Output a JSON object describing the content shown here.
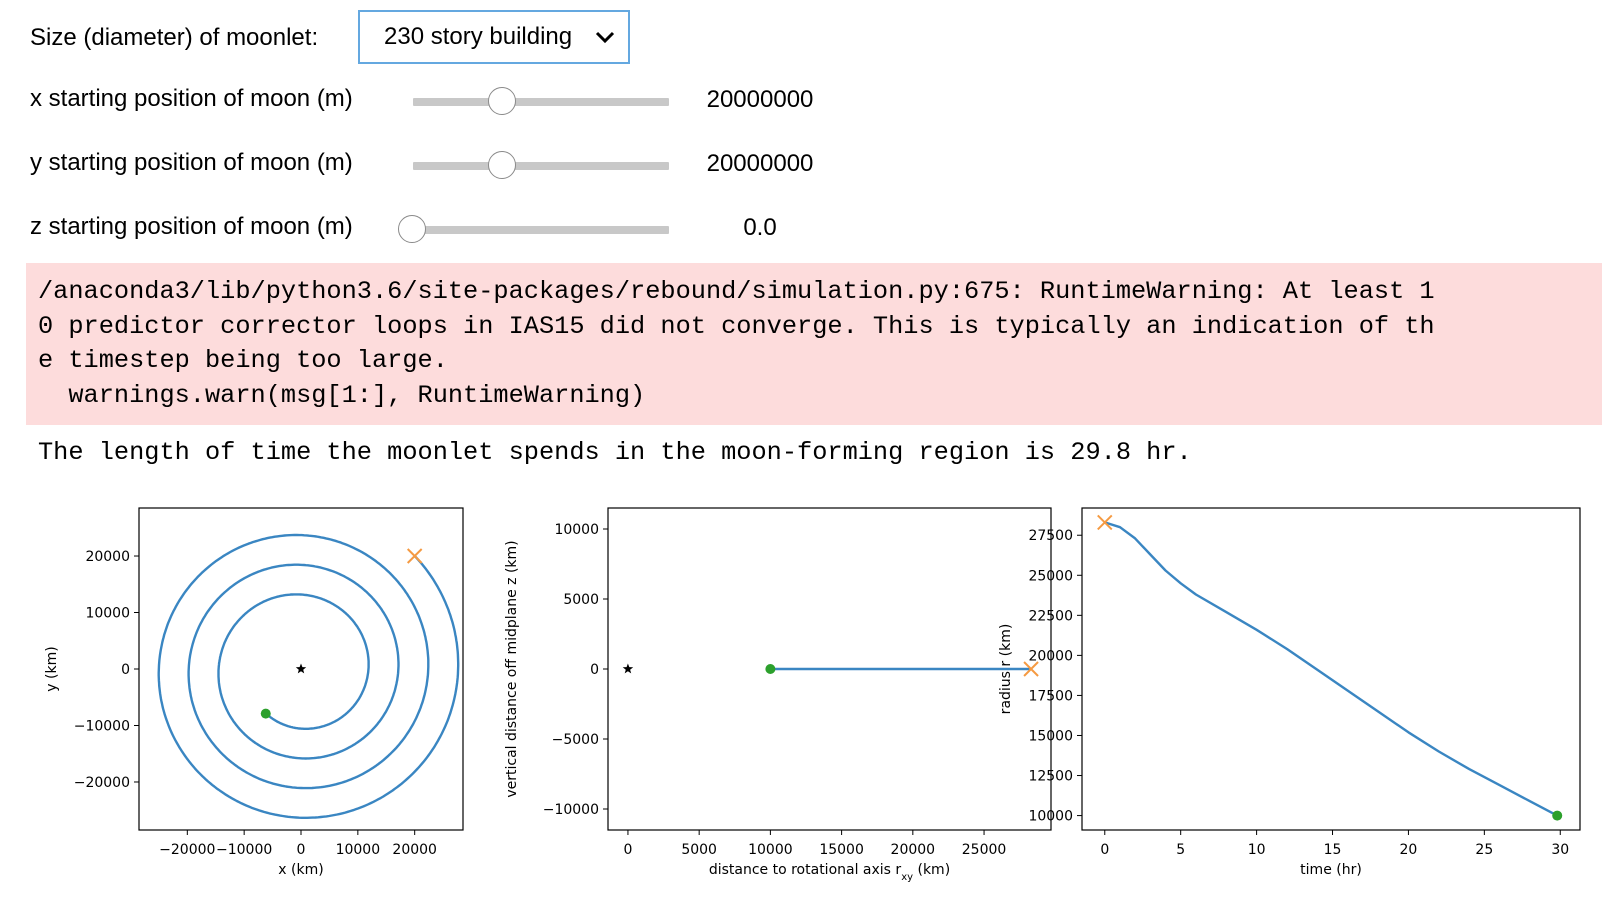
{
  "controls": {
    "size": {
      "label": "Size (diameter) of moonlet:",
      "selected": "230 story building"
    },
    "x_slider": {
      "label": "x starting position of moon (m)",
      "value": "20000000",
      "fraction": 0.35
    },
    "y_slider": {
      "label": "y starting position of moon (m)",
      "value": "20000000",
      "fraction": 0.35
    },
    "z_slider": {
      "label": "z starting position of moon (m)",
      "value": "0.0",
      "fraction": 0.0
    }
  },
  "output": {
    "warning_lines": [
      "/anaconda3/lib/python3.6/site-packages/rebound/simulation.py:675: RuntimeWarning: At least 1",
      "0 predictor corrector loops in IAS15 did not converge. This is typically an indication of th",
      "e timestep being too large.",
      "  warnings.warn(msg[1:], RuntimeWarning)"
    ],
    "result_text": "The length of time the moonlet spends in the moon-forming region is 29.8 hr."
  },
  "colors": {
    "orbit": "#3a86c2",
    "start_marker": "#f59a42",
    "end_marker": "#2ca02c",
    "center_marker": "#000000",
    "warning_bg": "#fddcdc",
    "dropdown_border": "#64a8e0"
  },
  "chart_data": [
    {
      "type": "line",
      "xlabel": "x (km)",
      "ylabel": "y (km)",
      "xlim": [
        -28500,
        28500
      ],
      "ylim": [
        -28500,
        28500
      ],
      "xticks": [
        -20000,
        -10000,
        0,
        10000,
        20000
      ],
      "xtick_labels": [
        "−20000",
        "−10000",
        "0",
        "10000",
        "20000"
      ],
      "yticks": [
        20000,
        10000,
        0,
        -10000,
        -20000
      ],
      "ytick_labels": [
        "20000",
        "10000",
        "0",
        "−10000",
        "−20000"
      ],
      "series": [
        {
          "kind": "spiral",
          "start_radius_km": 28300,
          "end_radius_km": 10000,
          "start_angle_deg": 45,
          "end_angle_deg": 232,
          "turns": 4
        }
      ],
      "markers": [
        {
          "shape": "x",
          "x": 20000,
          "y": 20000,
          "color": "#f59a42"
        },
        {
          "shape": "dot",
          "x": -6200,
          "y": -7900,
          "color": "#2ca02c"
        },
        {
          "shape": "star",
          "x": 0,
          "y": 0,
          "color": "#000000"
        }
      ]
    },
    {
      "type": "line",
      "xlabel": "distance to rotational axis r",
      "xlabel_sub": "xy",
      "xlabel_unit": "(km)",
      "ylabel": "vertical distance off midplane z (km)",
      "xlim": [
        -1400,
        29700
      ],
      "ylim": [
        -11500,
        11500
      ],
      "xticks": [
        0,
        5000,
        10000,
        15000,
        20000,
        25000
      ],
      "xtick_labels": [
        "0",
        "5000",
        "10000",
        "15000",
        "20000",
        "25000"
      ],
      "yticks": [
        10000,
        5000,
        0,
        -5000,
        -10000
      ],
      "ytick_labels": [
        "10000",
        "5000",
        "0",
        "−5000",
        "−10000"
      ],
      "series": [
        {
          "x": [
            10000,
            28300
          ],
          "y": [
            0,
            0
          ]
        }
      ],
      "markers": [
        {
          "shape": "x",
          "x": 28300,
          "y": 0,
          "color": "#f59a42"
        },
        {
          "shape": "dot",
          "x": 10000,
          "y": 0,
          "color": "#2ca02c"
        },
        {
          "shape": "star",
          "x": 0,
          "y": 0,
          "color": "#000000"
        }
      ]
    },
    {
      "type": "line",
      "xlabel": "time (hr)",
      "ylabel": "radius r (km)",
      "xlim": [
        -1.5,
        31.3
      ],
      "ylim": [
        9100,
        29200
      ],
      "xticks": [
        0,
        5,
        10,
        15,
        20,
        25,
        30
      ],
      "xtick_labels": [
        "0",
        "5",
        "10",
        "15",
        "20",
        "25",
        "30"
      ],
      "yticks": [
        27500,
        25000,
        22500,
        20000,
        17500,
        15000,
        12500,
        10000
      ],
      "ytick_labels": [
        "27500",
        "25000",
        "22500",
        "20000",
        "17500",
        "15000",
        "12500",
        "10000"
      ],
      "series": [
        {
          "x": [
            0,
            1,
            2,
            3,
            4,
            5,
            6,
            8,
            10,
            12,
            14,
            16,
            18,
            20,
            22,
            24,
            26,
            28,
            29.8
          ],
          "y": [
            28300,
            28000,
            27300,
            26300,
            25300,
            24500,
            23800,
            22700,
            21600,
            20400,
            19100,
            17800,
            16500,
            15200,
            14000,
            12900,
            11900,
            10900,
            10000
          ]
        }
      ],
      "markers": [
        {
          "shape": "x",
          "x": 0,
          "y": 28300,
          "color": "#f59a42"
        },
        {
          "shape": "dot",
          "x": 29.8,
          "y": 10000,
          "color": "#2ca02c"
        }
      ]
    }
  ]
}
